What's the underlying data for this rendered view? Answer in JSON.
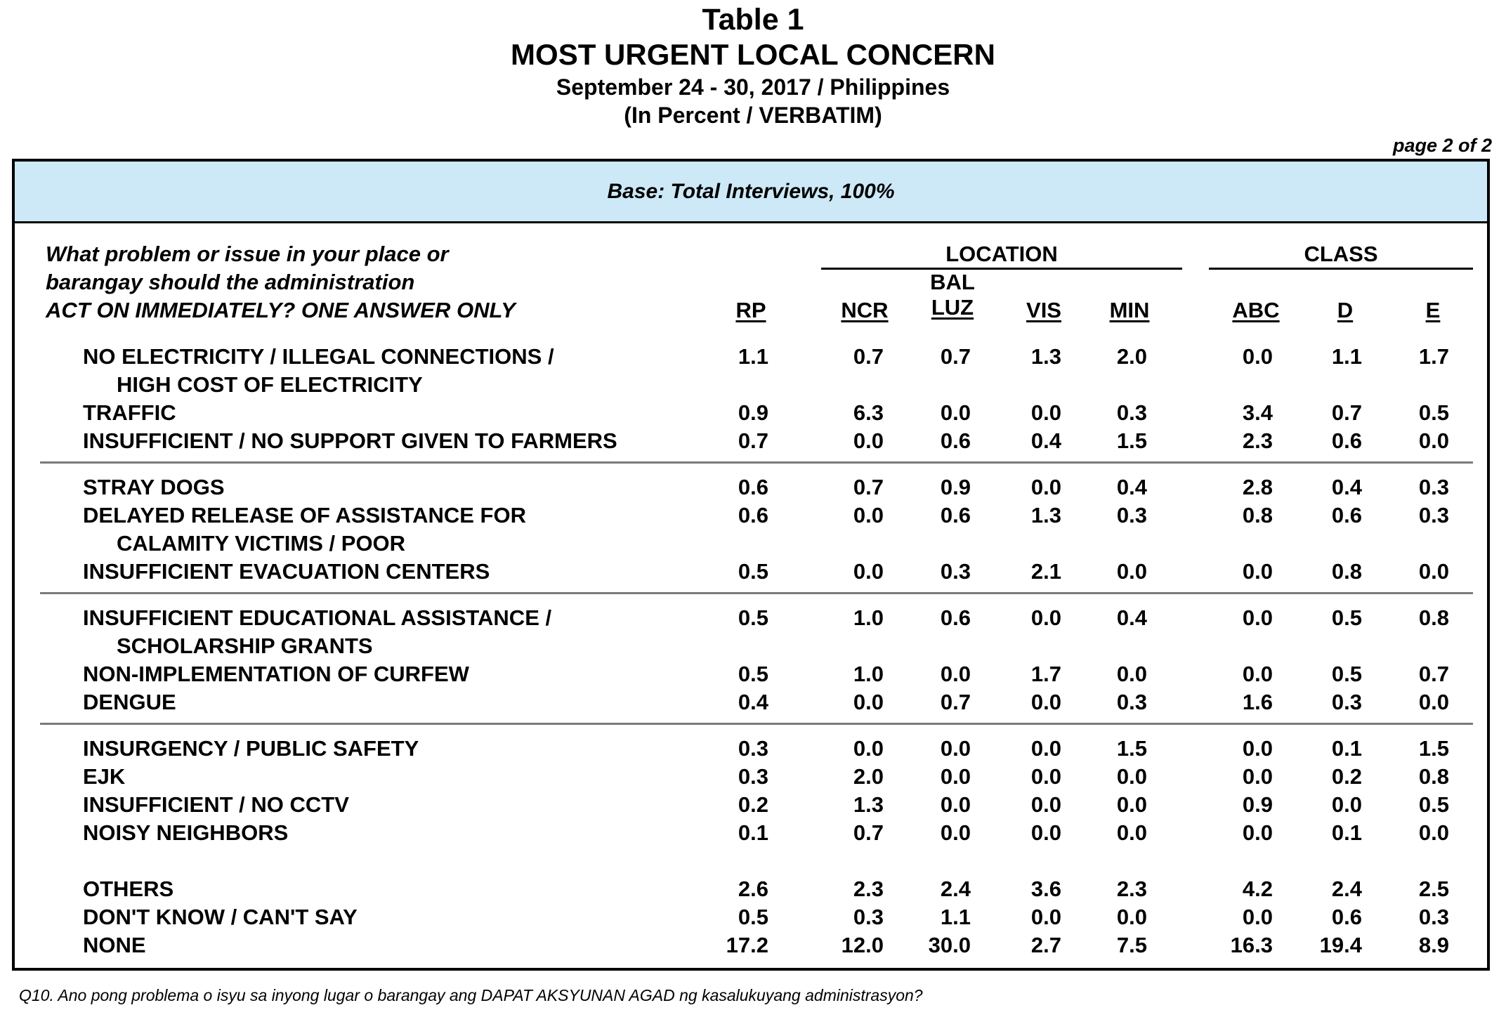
{
  "title": "Table 1",
  "subtitle": "MOST URGENT LOCAL CONCERN",
  "date_line": "September 24 - 30, 2017 / Philippines",
  "unit_line": "(In Percent / VERBATIM)",
  "page_label": "page 2 of 2",
  "base_label": "Base: Total Interviews, 100%",
  "question": [
    "What problem or issue in your place or",
    "barangay should the administration",
    "ACT ON IMMEDIATELY? ONE ANSWER ONLY"
  ],
  "group_headers": {
    "location": "LOCATION",
    "class": "CLASS"
  },
  "columns": [
    "RP",
    "NCR",
    "BAL LUZ",
    "VIS",
    "MIN",
    "ABC",
    "D",
    "E"
  ],
  "rows": [
    {
      "label": [
        "NO ELECTRICITY / ILLEGAL CONNECTIONS /",
        "HIGH COST OF ELECTRICITY"
      ],
      "values": [
        "1.1",
        "0.7",
        "0.7",
        "1.3",
        "2.0",
        "0.0",
        "1.1",
        "1.7"
      ]
    },
    {
      "label": [
        "TRAFFIC"
      ],
      "values": [
        "0.9",
        "6.3",
        "0.0",
        "0.0",
        "0.3",
        "3.4",
        "0.7",
        "0.5"
      ]
    },
    {
      "label": [
        "INSUFFICIENT / NO SUPPORT GIVEN TO FARMERS"
      ],
      "values": [
        "0.7",
        "0.0",
        "0.6",
        "0.4",
        "1.5",
        "2.3",
        "0.6",
        "0.0"
      ]
    },
    {
      "label": [
        "STRAY DOGS"
      ],
      "values": [
        "0.6",
        "0.7",
        "0.9",
        "0.0",
        "0.4",
        "2.8",
        "0.4",
        "0.3"
      ]
    },
    {
      "label": [
        "DELAYED RELEASE OF ASSISTANCE FOR",
        "CALAMITY VICTIMS / POOR"
      ],
      "values": [
        "0.6",
        "0.0",
        "0.6",
        "1.3",
        "0.3",
        "0.8",
        "0.6",
        "0.3"
      ]
    },
    {
      "label": [
        "INSUFFICIENT EVACUATION CENTERS"
      ],
      "values": [
        "0.5",
        "0.0",
        "0.3",
        "2.1",
        "0.0",
        "0.0",
        "0.8",
        "0.0"
      ]
    },
    {
      "label": [
        "INSUFFICIENT EDUCATIONAL ASSISTANCE /",
        "SCHOLARSHIP GRANTS"
      ],
      "values": [
        "0.5",
        "1.0",
        "0.6",
        "0.0",
        "0.4",
        "0.0",
        "0.5",
        "0.8"
      ]
    },
    {
      "label": [
        "NON-IMPLEMENTATION OF CURFEW"
      ],
      "values": [
        "0.5",
        "1.0",
        "0.0",
        "1.7",
        "0.0",
        "0.0",
        "0.5",
        "0.7"
      ]
    },
    {
      "label": [
        "DENGUE"
      ],
      "values": [
        "0.4",
        "0.0",
        "0.7",
        "0.0",
        "0.3",
        "1.6",
        "0.3",
        "0.0"
      ]
    },
    {
      "label": [
        "INSURGENCY / PUBLIC SAFETY"
      ],
      "values": [
        "0.3",
        "0.0",
        "0.0",
        "0.0",
        "1.5",
        "0.0",
        "0.1",
        "1.5"
      ]
    },
    {
      "label": [
        "EJK"
      ],
      "values": [
        "0.3",
        "2.0",
        "0.0",
        "0.0",
        "0.0",
        "0.0",
        "0.2",
        "0.8"
      ]
    },
    {
      "label": [
        "INSUFFICIENT / NO CCTV"
      ],
      "values": [
        "0.2",
        "1.3",
        "0.0",
        "0.0",
        "0.0",
        "0.9",
        "0.0",
        "0.5"
      ]
    },
    {
      "label": [
        "NOISY NEIGHBORS"
      ],
      "values": [
        "0.1",
        "0.7",
        "0.0",
        "0.0",
        "0.0",
        "0.0",
        "0.1",
        "0.0"
      ]
    },
    {
      "label": [
        "OTHERS"
      ],
      "values": [
        "2.6",
        "2.3",
        "2.4",
        "3.6",
        "2.3",
        "4.2",
        "2.4",
        "2.5"
      ]
    },
    {
      "label": [
        "DON'T KNOW / CAN'T SAY"
      ],
      "values": [
        "0.5",
        "0.3",
        "1.1",
        "0.0",
        "0.0",
        "0.0",
        "0.6",
        "0.3"
      ]
    },
    {
      "label": [
        "NONE"
      ],
      "values": [
        "17.2",
        "12.0",
        "30.0",
        "2.7",
        "7.5",
        "16.3",
        "19.4",
        "8.9"
      ]
    }
  ],
  "footnote": "Q10.  Ano pong problema o isyu sa inyong lugar o barangay ang DAPAT AKSYUNAN AGAD ng kasalukuyang administrasyon?"
}
